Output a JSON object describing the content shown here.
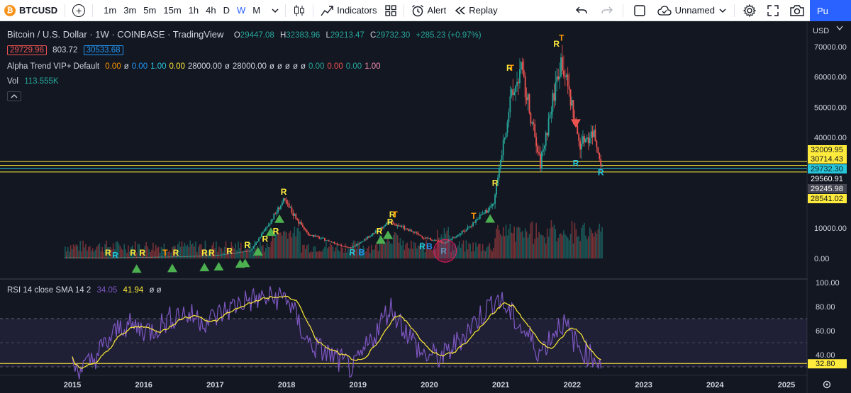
{
  "toolbar": {
    "symbol": "BTCUSD",
    "intervals": [
      "1m",
      "3m",
      "5m",
      "15m",
      "1h",
      "4h",
      "D",
      "W",
      "M"
    ],
    "active_interval": "W",
    "indicators_label": "Indicators",
    "alert_label": "Alert",
    "replay_label": "Replay",
    "layout_name": "Unnamed",
    "publish_label": "Pu"
  },
  "header": {
    "title": "Bitcoin / U.S. Dollar · 1W · COINBASE · TradingView",
    "open_label": "O",
    "open": "29447.08",
    "high_label": "H",
    "high": "32383.96",
    "low_label": "L",
    "low": "29213.47",
    "close_label": "C",
    "close": "29732.30",
    "change": "+285.23 (+0.97%)",
    "bid": "29729.96",
    "spread": "803.72",
    "ask": "30533.68"
  },
  "indicator": {
    "name": "Alpha Trend VIP+ Default",
    "values": [
      "0.00",
      "ø",
      "0.00",
      "1.00",
      "0.00",
      "28000.00",
      "ø",
      "28000.00",
      "ø",
      "ø",
      "ø",
      "ø",
      "ø",
      "0.00",
      "0.00",
      "0.00",
      "1.00"
    ],
    "colors": {
      "orange": "#ff9800",
      "blue": "#2196f3",
      "teal": "#26c6da",
      "yellow": "#ffeb3b",
      "white": "#d1d4dc",
      "green": "#26a69a",
      "red": "#ef5350",
      "pink": "#f48fb1"
    }
  },
  "volume": {
    "label": "Vol",
    "value": "113.555K"
  },
  "collapse_icon": "chevron-up-icon",
  "price_axis": {
    "currency": "USD",
    "ticks": [
      "70000.00",
      "60000.00",
      "50000.00",
      "40000.00",
      "10000.00",
      "0.00"
    ],
    "price_labels": [
      {
        "value": "32009.95",
        "bg": "#ffeb3b",
        "fg": "#131722"
      },
      {
        "value": "30714.43",
        "bg": "#ffeb3b",
        "fg": "#131722"
      },
      {
        "value": "29732.30",
        "bg": "#26c6da",
        "fg": "#131722"
      },
      {
        "value": "29560.91",
        "bg": "#131722",
        "fg": "#ffffff"
      },
      {
        "value": "29245.98",
        "bg": "#434651",
        "fg": "#ffffff"
      },
      {
        "value": "28541.02",
        "bg": "#ffeb3b",
        "fg": "#131722"
      }
    ]
  },
  "rsi": {
    "label": "RSI 14 close SMA 14 2",
    "rsi_value": "34.05",
    "sma_value": "41.94",
    "extra": "ø ø",
    "ticks": [
      "100.00",
      "80.00",
      "60.00",
      "40.00"
    ],
    "current_label": "32.80",
    "overbought": 70,
    "oversold": 30
  },
  "time_axis": {
    "labels": [
      "2015",
      "2016",
      "2017",
      "2018",
      "2019",
      "2020",
      "2021",
      "2022",
      "2023",
      "2024",
      "2025"
    ]
  },
  "chart_data": {
    "type": "line",
    "price_keypoints": [
      {
        "x": 2014.9,
        "y": 320
      },
      {
        "x": 2015.5,
        "y": 250
      },
      {
        "x": 2016.0,
        "y": 430
      },
      {
        "x": 2016.5,
        "y": 650
      },
      {
        "x": 2017.0,
        "y": 1000
      },
      {
        "x": 2017.5,
        "y": 2500
      },
      {
        "x": 2017.96,
        "y": 19000
      },
      {
        "x": 2018.3,
        "y": 8000
      },
      {
        "x": 2018.9,
        "y": 3300
      },
      {
        "x": 2019.45,
        "y": 12000
      },
      {
        "x": 2019.9,
        "y": 7200
      },
      {
        "x": 2020.2,
        "y": 5000
      },
      {
        "x": 2020.5,
        "y": 9200
      },
      {
        "x": 2020.9,
        "y": 18000
      },
      {
        "x": 2021.1,
        "y": 48000
      },
      {
        "x": 2021.28,
        "y": 63000
      },
      {
        "x": 2021.55,
        "y": 31000
      },
      {
        "x": 2021.85,
        "y": 67000
      },
      {
        "x": 2022.1,
        "y": 38000
      },
      {
        "x": 2022.3,
        "y": 42000
      },
      {
        "x": 2022.42,
        "y": 29732
      }
    ],
    "rsi_keypoints": [
      {
        "x": 2015.2,
        "y": 30
      },
      {
        "x": 2015.7,
        "y": 65
      },
      {
        "x": 2016.1,
        "y": 60
      },
      {
        "x": 2016.5,
        "y": 75
      },
      {
        "x": 2016.9,
        "y": 68
      },
      {
        "x": 2017.4,
        "y": 85
      },
      {
        "x": 2018.0,
        "y": 88
      },
      {
        "x": 2018.3,
        "y": 50
      },
      {
        "x": 2018.95,
        "y": 28
      },
      {
        "x": 2019.45,
        "y": 80
      },
      {
        "x": 2019.9,
        "y": 40
      },
      {
        "x": 2020.2,
        "y": 38
      },
      {
        "x": 2020.6,
        "y": 65
      },
      {
        "x": 2020.95,
        "y": 88
      },
      {
        "x": 2021.55,
        "y": 42
      },
      {
        "x": 2021.85,
        "y": 68
      },
      {
        "x": 2022.1,
        "y": 45
      },
      {
        "x": 2022.42,
        "y": 34
      }
    ],
    "signal_labels": [
      {
        "text": "R",
        "x": 2015.5,
        "y": 900,
        "color": "#ffeb3b"
      },
      {
        "text": "R",
        "x": 2015.85,
        "y": 900,
        "color": "#ffeb3b"
      },
      {
        "text": "R",
        "x": 2015.98,
        "y": 900,
        "color": "#ffeb3b"
      },
      {
        "text": "T",
        "x": 2016.3,
        "y": 900,
        "color": "#ff9800"
      },
      {
        "text": "R",
        "x": 2016.45,
        "y": 900,
        "color": "#ffeb3b"
      },
      {
        "text": "R",
        "x": 2016.85,
        "y": 900,
        "color": "#ffeb3b"
      },
      {
        "text": "R",
        "x": 2016.95,
        "y": 900,
        "color": "#ffeb3b"
      },
      {
        "text": "R",
        "x": 2017.2,
        "y": 1500,
        "color": "#ffeb3b"
      },
      {
        "text": "R",
        "x": 2017.45,
        "y": 3500,
        "color": "#ffeb3b"
      },
      {
        "text": "R",
        "x": 2017.7,
        "y": 5500,
        "color": "#ffeb3b"
      },
      {
        "text": "R",
        "x": 2017.85,
        "y": 8000,
        "color": "#ffeb3b"
      },
      {
        "text": "R",
        "x": 2017.96,
        "y": 21000,
        "color": "#ffeb3b"
      },
      {
        "text": "R",
        "x": 2019.3,
        "y": 8000,
        "color": "#ffeb3b"
      },
      {
        "text": "R",
        "x": 2019.45,
        "y": 11000,
        "color": "#ffeb3b"
      },
      {
        "text": "R",
        "x": 2019.48,
        "y": 13500,
        "color": "#ffeb3b"
      },
      {
        "text": "T",
        "x": 2019.52,
        "y": 13500,
        "color": "#ff9800"
      },
      {
        "text": "T",
        "x": 2020.62,
        "y": 13000,
        "color": "#ff9800"
      },
      {
        "text": "R",
        "x": 2020.92,
        "y": 24000,
        "color": "#ffeb3b"
      },
      {
        "text": "R",
        "x": 2021.12,
        "y": 62000,
        "color": "#ffeb3b"
      },
      {
        "text": "T",
        "x": 2021.15,
        "y": 62000,
        "color": "#ff9800"
      },
      {
        "text": "R",
        "x": 2021.78,
        "y": 70000,
        "color": "#ffeb3b"
      },
      {
        "text": "T",
        "x": 2021.85,
        "y": 72000,
        "color": "#ff9800"
      },
      {
        "text": "R",
        "x": 2015.6,
        "y": 80,
        "color": "#26c6da"
      },
      {
        "text": "R",
        "x": 2018.92,
        "y": 1000,
        "color": "#26c6da"
      },
      {
        "text": "B",
        "x": 2019.05,
        "y": 1000,
        "color": "#2196f3"
      },
      {
        "text": "R",
        "x": 2019.9,
        "y": 3000,
        "color": "#26c6da"
      },
      {
        "text": "B",
        "x": 2020.0,
        "y": 3000,
        "color": "#2196f3"
      },
      {
        "text": "R",
        "x": 2020.2,
        "y": 1500,
        "color": "#26c6da"
      },
      {
        "text": "R",
        "x": 2022.05,
        "y": 30500,
        "color": "#26c6da"
      },
      {
        "text": "R",
        "x": 2022.4,
        "y": 27500,
        "color": "#26c6da"
      }
    ],
    "buy_arrows": [
      2015.9,
      2016.4,
      2016.85,
      2017.05,
      2017.35,
      2017.42,
      2017.6,
      2017.78,
      2017.9,
      2019.32,
      2019.42,
      2020.85
    ],
    "sell_arrows": [
      {
        "x": 2022.05,
        "y": 46000
      }
    ],
    "hlines": [
      32009.95,
      30714.43,
      29732.3,
      28541.02
    ]
  }
}
